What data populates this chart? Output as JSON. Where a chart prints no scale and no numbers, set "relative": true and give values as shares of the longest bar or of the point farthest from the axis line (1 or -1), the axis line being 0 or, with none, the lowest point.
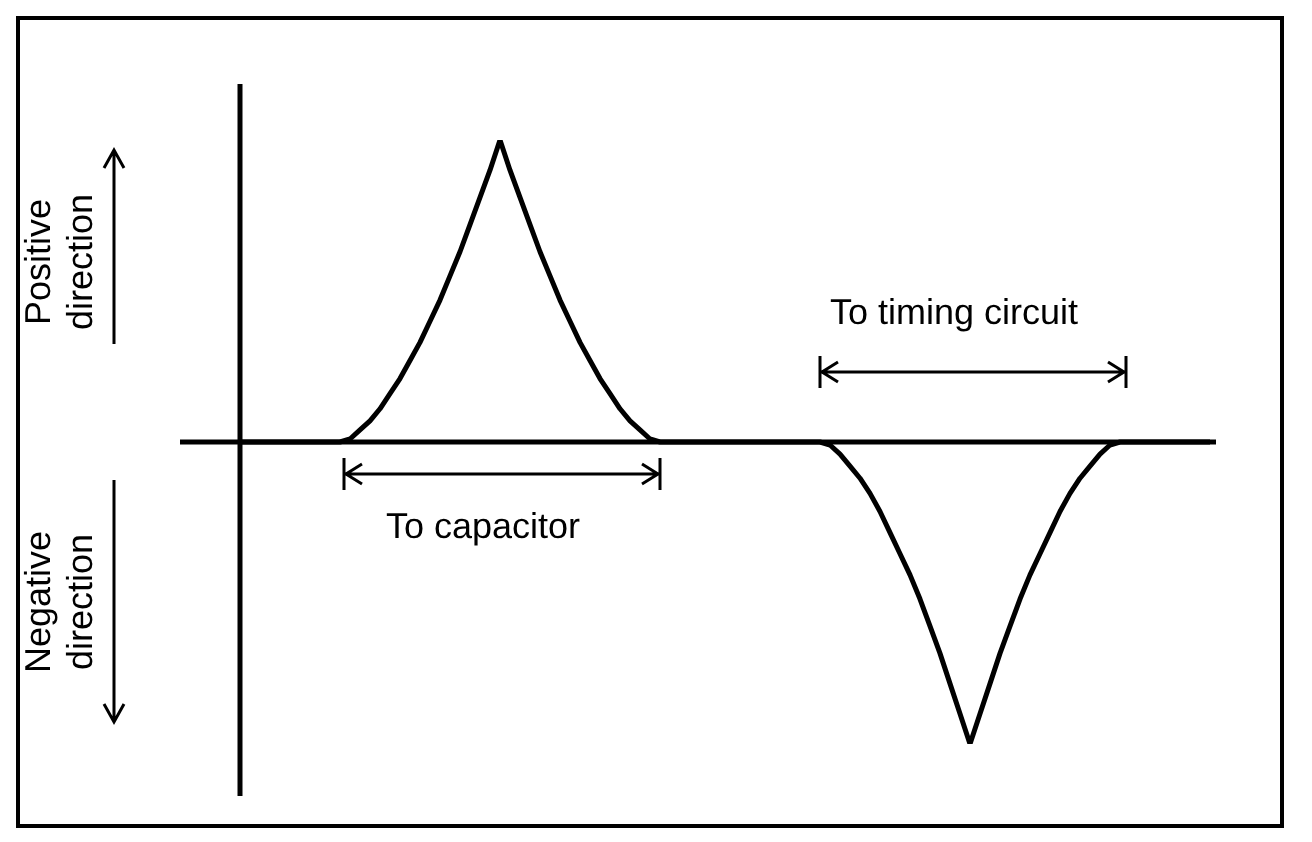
{
  "chart_data": {
    "type": "line",
    "relative": true,
    "legend": false,
    "tick_labels": false,
    "marker": "none",
    "categories": [
      null,
      null,
      null,
      null,
      null,
      null,
      null,
      null,
      null,
      null,
      null,
      null,
      null,
      null,
      null,
      null,
      null,
      null,
      null,
      null,
      null,
      null,
      null,
      null,
      null,
      null,
      null,
      null,
      null,
      null,
      null,
      null,
      null,
      null,
      null,
      null,
      null,
      null,
      null,
      null,
      null,
      null,
      null,
      null,
      null,
      null,
      null,
      null,
      null,
      null,
      null,
      null,
      null,
      null,
      null,
      null,
      null,
      null,
      null,
      null,
      null,
      null,
      null,
      null,
      null,
      null,
      null,
      null,
      null,
      null,
      null,
      null,
      null,
      null,
      null,
      null,
      null,
      null,
      null,
      null,
      null,
      null,
      null,
      null,
      null,
      null,
      null,
      null,
      null,
      null,
      null,
      null,
      null,
      null,
      null,
      null,
      null,
      null
    ],
    "series": [
      {
        "color": "#000000",
        "values": [
          0,
          0,
          0,
          0,
          0,
          0,
          0,
          0,
          0,
          0,
          0,
          0.01,
          0.04,
          0.07,
          0.11,
          0.16,
          0.21,
          0.27,
          0.33,
          0.4,
          0.47,
          0.55,
          0.63,
          0.72,
          0.81,
          0.9,
          1,
          0.9,
          0.81,
          0.72,
          0.63,
          0.55,
          0.47,
          0.4,
          0.33,
          0.27,
          0.21,
          0.16,
          0.11,
          0.07,
          0.04,
          0.01,
          0,
          0,
          0,
          0,
          0,
          0,
          0,
          0,
          0,
          0,
          0,
          0,
          0,
          0,
          0,
          0,
          0,
          -0.01,
          -0.04,
          -0.08,
          -0.12,
          -0.17,
          -0.23,
          -0.3,
          -0.37,
          -0.44,
          -0.52,
          -0.61,
          -0.7,
          -0.8,
          -0.9,
          -1,
          -0.9,
          -0.8,
          -0.7,
          -0.61,
          -0.52,
          -0.44,
          -0.37,
          -0.3,
          -0.23,
          -0.17,
          -0.12,
          -0.08,
          -0.04,
          -0.01,
          0,
          0,
          0,
          0,
          0,
          0,
          0,
          0,
          0,
          0
        ]
      }
    ],
    "annotations": [
      "Positive direction",
      "Negative direction",
      "To capacitor",
      "To timing circuit"
    ]
  }
}
